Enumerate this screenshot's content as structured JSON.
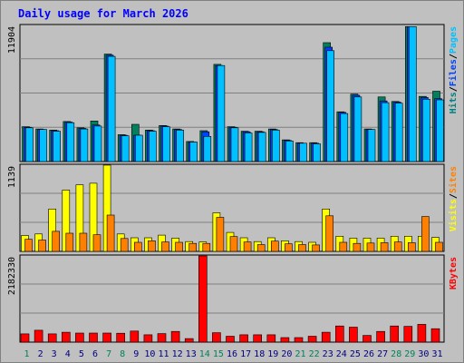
{
  "chart_data": {
    "type": "bar",
    "title": "Daily usage for March 2026",
    "categories": [
      "1",
      "2",
      "3",
      "4",
      "5",
      "6",
      "7",
      "8",
      "9",
      "10",
      "11",
      "12",
      "13",
      "14",
      "15",
      "16",
      "17",
      "18",
      "19",
      "20",
      "21",
      "22",
      "23",
      "24",
      "25",
      "26",
      "27",
      "28",
      "29",
      "30",
      "31"
    ],
    "weekend_days": [
      "1",
      "7",
      "8",
      "14",
      "15",
      "21",
      "22",
      "28",
      "29"
    ],
    "panels": [
      {
        "id": "hits",
        "ymax_label": "11904",
        "ymax": 11904,
        "legend": [
          {
            "name": "Pages",
            "color": "#00c0ff"
          },
          {
            "name": "Files",
            "color": "#0040ff"
          },
          {
            "name": "Hits",
            "color": "#008080"
          }
        ],
        "series": [
          {
            "name": "Hits",
            "color": "#00805c",
            "values": [
              3050,
              2850,
              2750,
              3500,
              2950,
              3550,
              9400,
              2350,
              3250,
              2750,
              3150,
              2850,
              1750,
              2700,
              8500,
              3050,
              2650,
              2650,
              2850,
              1900,
              1650,
              1650,
              10400,
              4350,
              5900,
              2850,
              5650,
              5250,
              11800,
              5700,
              6150
            ]
          },
          {
            "name": "Files",
            "color": "#0040ff",
            "values": [
              3000,
              2800,
              2700,
              3450,
              2900,
              3200,
              9300,
              2300,
              2300,
              2700,
              3100,
              2800,
              1700,
              2600,
              8400,
              3000,
              2600,
              2600,
              2800,
              1850,
              1600,
              1600,
              10000,
              4300,
              5800,
              2800,
              5300,
              5200,
              11800,
              5600,
              5500
            ]
          },
          {
            "name": "Pages",
            "color": "#00c0ff",
            "values": [
              2950,
              2800,
              2650,
              3400,
              2850,
              3100,
              9200,
              2250,
              2300,
              2650,
              3050,
              2750,
              1700,
              2200,
              8400,
              2950,
              2500,
              2550,
              2750,
              1800,
              1600,
              1550,
              9700,
              4200,
              5650,
              2800,
              5150,
              5100,
              11800,
              5450,
              5400
            ]
          }
        ]
      },
      {
        "id": "visits",
        "ymax_label": "1139",
        "ymax": 1139,
        "legend": [
          {
            "name": "Sites",
            "color": "#ff8000"
          },
          {
            "name": "Visits",
            "color": "#ffff00"
          }
        ],
        "series": [
          {
            "name": "Visits",
            "color": "#ffff00",
            "values": [
              210,
              230,
              560,
              810,
              880,
              900,
              1139,
              230,
              180,
              180,
              215,
              175,
              130,
              125,
              510,
              250,
              180,
              130,
              180,
              140,
              130,
              120,
              560,
              200,
              175,
              175,
              175,
              200,
              200,
              200,
              185
            ]
          },
          {
            "name": "Sites",
            "color": "#ff8000",
            "values": [
              160,
              150,
              265,
              240,
              240,
              220,
              480,
              170,
              120,
              140,
              125,
              120,
              105,
              105,
              450,
              195,
              125,
              90,
              135,
              100,
              90,
              85,
              470,
              120,
              105,
              110,
              115,
              125,
              115,
              460,
              120
            ]
          }
        ]
      },
      {
        "id": "kbytes",
        "ymax_label": "2182330",
        "ymax": 2182330,
        "legend": [
          {
            "name": "KBytes",
            "color": "#ff0000"
          }
        ],
        "series": [
          {
            "name": "KBytes",
            "color": "#ff0000",
            "values": [
              210000,
              300000,
              210000,
              250000,
              230000,
              230000,
              230000,
              225000,
              280000,
              185000,
              215000,
              270000,
              90000,
              2182330,
              240000,
              150000,
              185000,
              185000,
              185000,
              115000,
              115000,
              150000,
              250000,
              410000,
              380000,
              170000,
              270000,
              410000,
              400000,
              450000,
              340000
            ]
          }
        ]
      }
    ],
    "colors": {
      "background": "#c0c0c0",
      "frame_bg": "#ffffff",
      "title": "#0000ff",
      "weekend_label": "#00805c",
      "weekday_label": "#000080",
      "tick_label": "#000000",
      "grid": "#808080"
    }
  }
}
